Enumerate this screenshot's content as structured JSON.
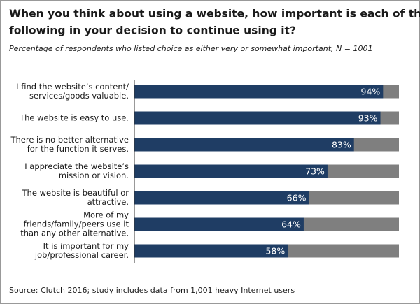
{
  "chart_data": {
    "type": "bar",
    "orientation": "horizontal",
    "title": [
      "When you think about using a website, how important is each of the",
      "following in your decision to continue using it?"
    ],
    "subtitle": "Percentage of respondents who listed choice as either very or somewhat important, N = 1001",
    "categories": [
      [
        "I find the website’s content/",
        "services/goods valuable."
      ],
      [
        "The website is easy to use."
      ],
      [
        "There is no better alternative",
        "for the function it serves."
      ],
      [
        "I appreciate the website’s",
        "mission or vision."
      ],
      [
        "The website is beautiful or",
        "attractive."
      ],
      [
        "More of my",
        "friends/family/peers use it",
        "than any other alternative."
      ],
      [
        "It is important for my",
        "job/professional career."
      ]
    ],
    "values": [
      94,
      93,
      83,
      73,
      66,
      64,
      58
    ],
    "value_labels": [
      "94%",
      "93%",
      "83%",
      "73%",
      "66%",
      "64%",
      "58%"
    ],
    "color": "#1f3d64",
    "remainder_color": "#7f7f7f",
    "xlim": [
      0,
      100
    ],
    "source": "Source: Clutch 2016; study includes data from 1,001 heavy Internet users"
  }
}
